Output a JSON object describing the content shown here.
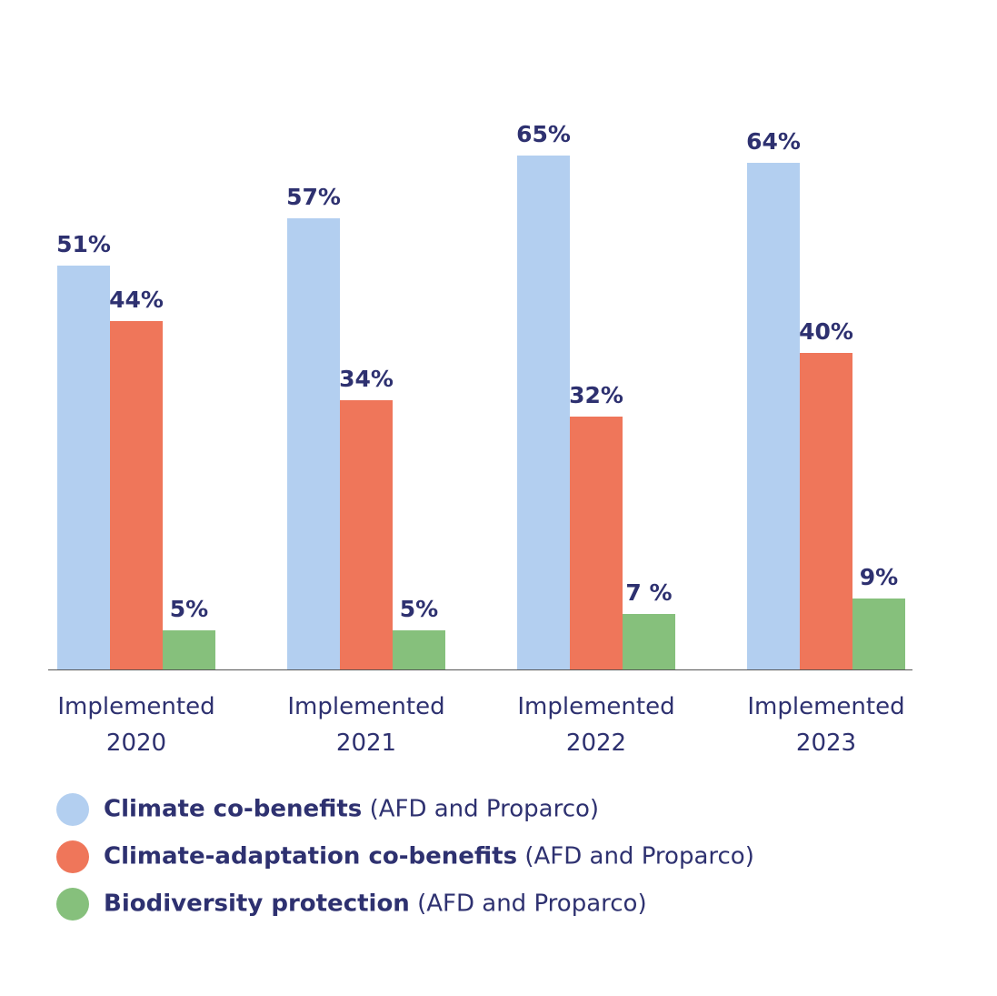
{
  "chart_data": {
    "type": "bar",
    "categories": [
      "Implemented 2020",
      "Implemented 2021",
      "Implemented 2022",
      "Implemented 2023"
    ],
    "series": [
      {
        "name": "Climate co-benefits",
        "note": "(AFD and Proparco)",
        "color": "#b3cff0",
        "values": [
          51,
          57,
          65,
          64
        ],
        "value_labels": [
          "51%",
          "57%",
          "65%",
          "64%"
        ]
      },
      {
        "name": "Climate-adaptation co-benefits",
        "note": "(AFD and Proparco)",
        "color": "#ef765a",
        "values": [
          44,
          34,
          32,
          40
        ],
        "value_labels": [
          "44%",
          "34%",
          "32%",
          "40%"
        ]
      },
      {
        "name": "Biodiversity protection",
        "note": "(AFD and Proparco)",
        "color": "#86c07c",
        "values": [
          5,
          5,
          7,
          9
        ],
        "value_labels": [
          "5%",
          "5%",
          "7 %",
          "9%"
        ]
      }
    ]
  }
}
